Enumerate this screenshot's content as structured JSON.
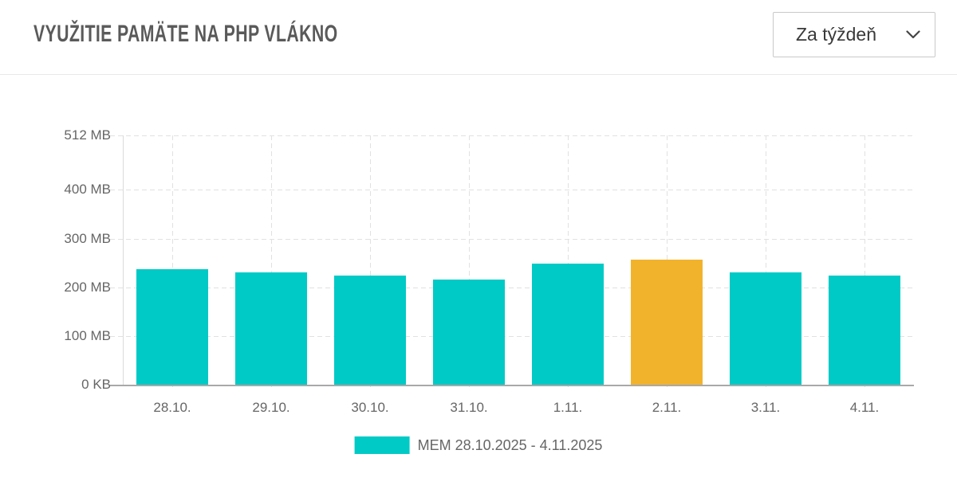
{
  "header": {
    "title": "VYUŽITIE PAMÄTE NA PHP VLÁKNO",
    "period_select": {
      "value": "Za týždeň",
      "icon": "chevron-down-icon"
    }
  },
  "colors": {
    "bar_teal": "#00cac6",
    "bar_highlight_orange": "#f2b32c",
    "grid": "#e1e1e1",
    "axis_line": "#dbdbdb",
    "baseline": "#a9a9a9",
    "label_text": "#666666",
    "title_text": "#5a5a5a"
  },
  "chart_data": {
    "type": "bar",
    "title": "VYUŽITIE PAMÄTE NA PHP VLÁKNO",
    "categories": [
      "28.10.",
      "29.10.",
      "30.10.",
      "31.10.",
      "1.11.",
      "2.11.",
      "3.11.",
      "4.11."
    ],
    "series": [
      {
        "name": "MEM 28.10.2025 - 4.11.2025",
        "unit": "MB",
        "values": [
          237,
          230,
          224,
          216,
          248,
          257,
          230,
          224
        ]
      }
    ],
    "highlighted_category": "2.11.",
    "xlabel": "",
    "ylabel": "",
    "ylim": [
      0,
      512
    ],
    "yticks": [
      {
        "value": 0,
        "label": "0 KB"
      },
      {
        "value": 100,
        "label": "100 MB"
      },
      {
        "value": 200,
        "label": "200 MB"
      },
      {
        "value": 300,
        "label": "300 MB"
      },
      {
        "value": 400,
        "label": "400 MB"
      },
      {
        "value": 512,
        "label": "512 MB"
      }
    ],
    "grid": "dashed",
    "legend_position": "bottom"
  },
  "legend": {
    "label": "MEM 28.10.2025 - 4.11.2025"
  }
}
